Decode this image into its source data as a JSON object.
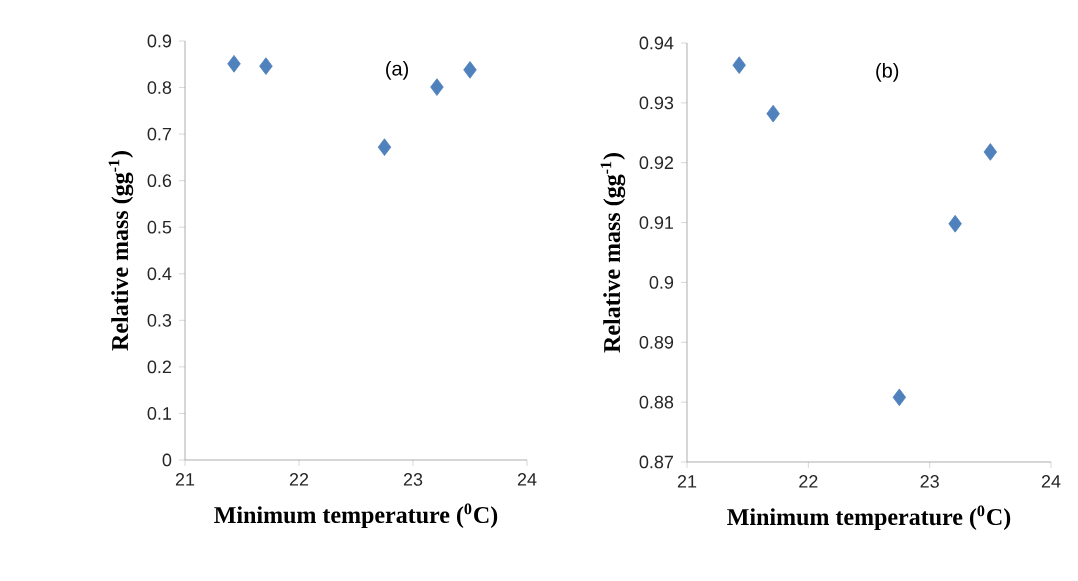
{
  "chart_data": [
    {
      "type": "scatter",
      "annotations": [
        "(a)"
      ],
      "xlabel": "Minimum temperature ($^{0}$C)",
      "ylabel": "Relative mass (gg$^{-1}$)",
      "marker": "diamond",
      "x": [
        21.43,
        21.71,
        22.75,
        23.21,
        23.5
      ],
      "series": [
        {
          "color": "#4f81bd",
          "values": [
            0.851,
            0.846,
            0.672,
            0.801,
            0.838
          ]
        }
      ],
      "xlim": [
        21,
        24
      ],
      "xticks": [
        21,
        22,
        23,
        24
      ],
      "ylim": [
        0,
        0.9
      ],
      "yticks": [
        0,
        0.1,
        0.2,
        0.3,
        0.4,
        0.5,
        0.6,
        0.7,
        0.8,
        0.9
      ]
    },
    {
      "type": "scatter",
      "annotations": [
        "(b)"
      ],
      "xlabel": "Minimum temperature ($^{0}$C)",
      "ylabel": "Relative mass (gg$^{-1}$)",
      "marker": "diamond",
      "x": [
        21.43,
        21.71,
        22.75,
        23.21,
        23.5
      ],
      "series": [
        {
          "color": "#4f81bd",
          "values": [
            0.9363,
            0.9282,
            0.8808,
            0.9098,
            0.9218
          ]
        }
      ],
      "xlim": [
        21,
        24
      ],
      "xticks": [
        21,
        22,
        23,
        24
      ],
      "ylim": [
        0.87,
        0.94
      ],
      "yticks": [
        0.87,
        0.88,
        0.89,
        0.9,
        0.91,
        0.92,
        0.93,
        0.94
      ]
    }
  ]
}
